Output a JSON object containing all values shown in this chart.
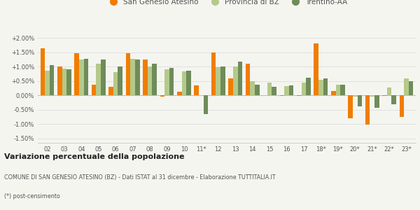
{
  "years": [
    "02",
    "03",
    "04",
    "05",
    "06",
    "07",
    "08",
    "09",
    "10",
    "11*",
    "12",
    "13",
    "14",
    "15",
    "16",
    "17",
    "18*",
    "19*",
    "20*",
    "21*",
    "22*",
    "23*"
  ],
  "san_genesio": [
    1.65,
    1.0,
    1.47,
    0.37,
    0.3,
    1.47,
    1.25,
    -0.05,
    0.12,
    0.35,
    1.5,
    0.6,
    1.1,
    0.0,
    -0.02,
    -0.02,
    1.8,
    0.15,
    -0.8,
    -1.02,
    -0.02,
    -0.75
  ],
  "provincia_bz": [
    0.85,
    0.93,
    1.25,
    1.1,
    0.8,
    1.27,
    1.0,
    0.9,
    0.83,
    0.0,
    0.97,
    1.0,
    0.5,
    0.45,
    0.32,
    0.45,
    0.55,
    0.37,
    -0.05,
    -0.05,
    0.27,
    0.6
  ],
  "trentino_aa": [
    1.05,
    0.9,
    1.28,
    1.25,
    1.0,
    1.25,
    1.1,
    0.95,
    0.85,
    -0.65,
    1.0,
    1.18,
    0.38,
    0.3,
    0.35,
    0.62,
    0.6,
    0.38,
    -0.38,
    -0.42,
    -0.3,
    0.5
  ],
  "color_san_genesio": "#f07d00",
  "color_provincia": "#b5c98a",
  "color_trentino": "#6e8c5a",
  "title": "Variazione percentuale della popolazione",
  "subtitle": "COMUNE DI SAN GENESIO ATESINO (BZ) - Dati ISTAT al 31 dicembre - Elaborazione TUTTITALIA.IT",
  "footnote": "(*) post-censimento",
  "legend_labels": [
    "San Genesio Atesino",
    "Provincia di BZ",
    "Trentino-AA"
  ],
  "ylim": [
    -1.65,
    2.15
  ],
  "yticks": [
    -1.5,
    -1.0,
    -0.5,
    0.0,
    0.5,
    1.0,
    1.5,
    2.0
  ],
  "background_color": "#f5f5f0",
  "grid_color": "#dddddd",
  "text_color": "#555555"
}
